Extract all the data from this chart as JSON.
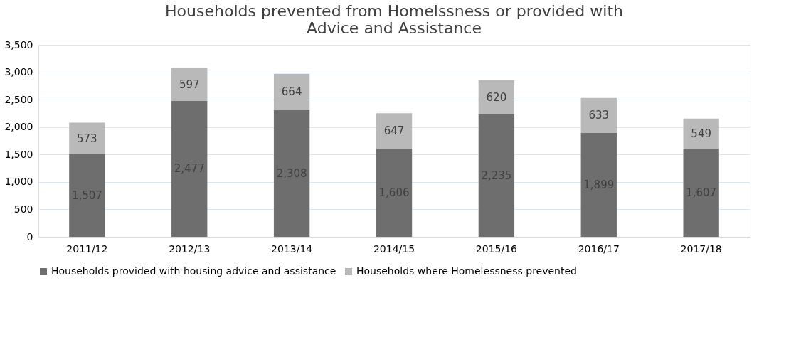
{
  "chart_data": {
    "type": "bar",
    "title": "Households prevented from Homelssness or provided with Advice and Assistance",
    "categories": [
      "2011/12",
      "2012/13",
      "2013/14",
      "2014/15",
      "2015/16",
      "2016/17",
      "2017/18"
    ],
    "stacked": true,
    "series": [
      {
        "name": "Households provided with housing advice and assistance",
        "color": "#6e6e6e",
        "values": [
          1507,
          2477,
          2308,
          1606,
          2235,
          1899,
          1607
        ],
        "value_labels": [
          "1,507",
          "2,477",
          "2,308",
          "1,606",
          "2,235",
          "1,899",
          "1,607"
        ]
      },
      {
        "name": "Households where Homelessness prevented",
        "color": "#b9b9b9",
        "values": [
          573,
          597,
          664,
          647,
          620,
          633,
          549
        ],
        "value_labels": [
          "573",
          "597",
          "664",
          "647",
          "620",
          "633",
          "549"
        ]
      }
    ],
    "ylim": [
      0,
      3500
    ],
    "yticks": [
      {
        "value": 0,
        "label": "0"
      },
      {
        "value": 500,
        "label": "500"
      },
      {
        "value": 1000,
        "label": "1,000"
      },
      {
        "value": 1500,
        "label": "1,500"
      },
      {
        "value": 2000,
        "label": "2,000"
      },
      {
        "value": 2500,
        "label": "2,500"
      },
      {
        "value": 3000,
        "label": "3,000"
      },
      {
        "value": 3500,
        "label": "3,500"
      }
    ],
    "grid": "y",
    "legend": "bottom"
  }
}
